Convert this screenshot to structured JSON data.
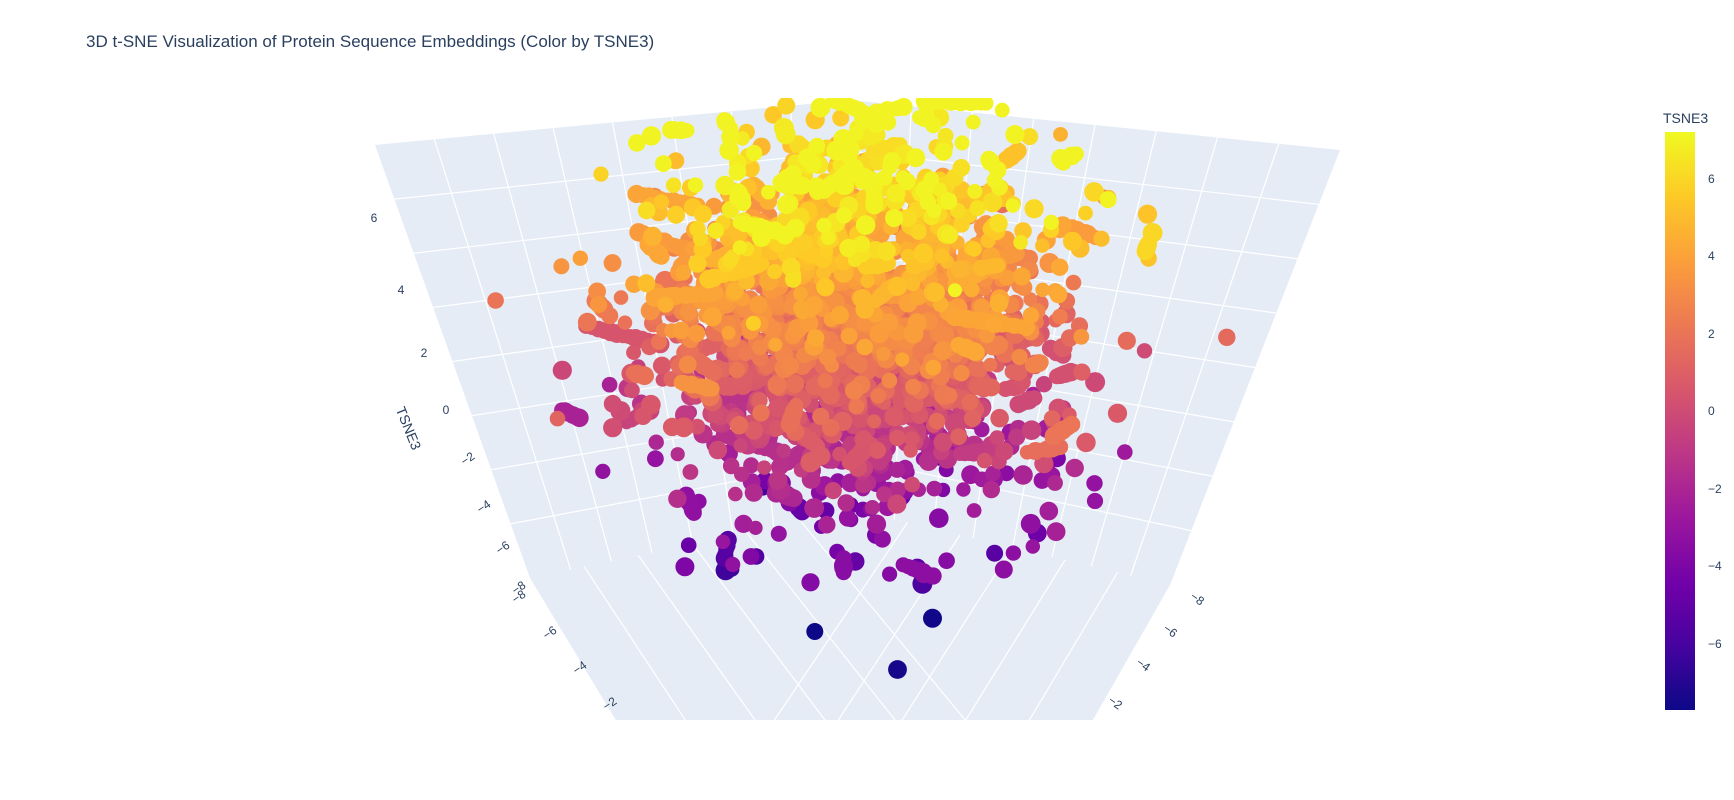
{
  "chart_data": {
    "type": "scatter",
    "title": "3D t-SNE Visualization of Protein Sequence Embeddings (Color by TSNE3)",
    "scene": {
      "background": "#e5ecf6",
      "gridline_color": "#ffffff",
      "grid": true
    },
    "axes": {
      "x": {
        "label": "",
        "ticks": [
          -8,
          -6,
          -4,
          -2
        ],
        "tick_labels": [
          "−8",
          "−6",
          "−4",
          "−2"
        ]
      },
      "y": {
        "label": "",
        "ticks": [
          -8,
          -6,
          -4,
          -2
        ],
        "tick_labels": [
          "−8",
          "−6",
          "−4",
          "−2"
        ]
      },
      "z": {
        "label": "TSNE3",
        "ticks": [
          -8,
          -6,
          -4,
          -2,
          0,
          2,
          4,
          6
        ],
        "tick_labels": [
          "−8",
          "−6",
          "−4",
          "−2",
          "0",
          "2",
          "4",
          "6"
        ],
        "range": [
          -8,
          7
        ]
      }
    },
    "colorbar": {
      "title": "TSNE3",
      "colorscale": "plasma",
      "range": [
        -7.7,
        7.2
      ],
      "ticks": [
        6,
        4,
        2,
        0,
        -2,
        -4,
        -6
      ],
      "tick_labels": [
        "6",
        "4",
        "2",
        "0",
        "−2",
        "−4",
        "−6"
      ]
    },
    "series": [
      {
        "marker_colorscale": "plasma",
        "marker_color_from": "TSNE3",
        "point_count_approx": 2000
      }
    ],
    "colors": {
      "plasma_stops": [
        "#0d0887",
        "#46039f",
        "#7201a8",
        "#9c179e",
        "#bd3786",
        "#d8576b",
        "#ed7953",
        "#fb9f3a",
        "#fdca26",
        "#f0f921"
      ],
      "text": "#2a3f5f"
    }
  }
}
